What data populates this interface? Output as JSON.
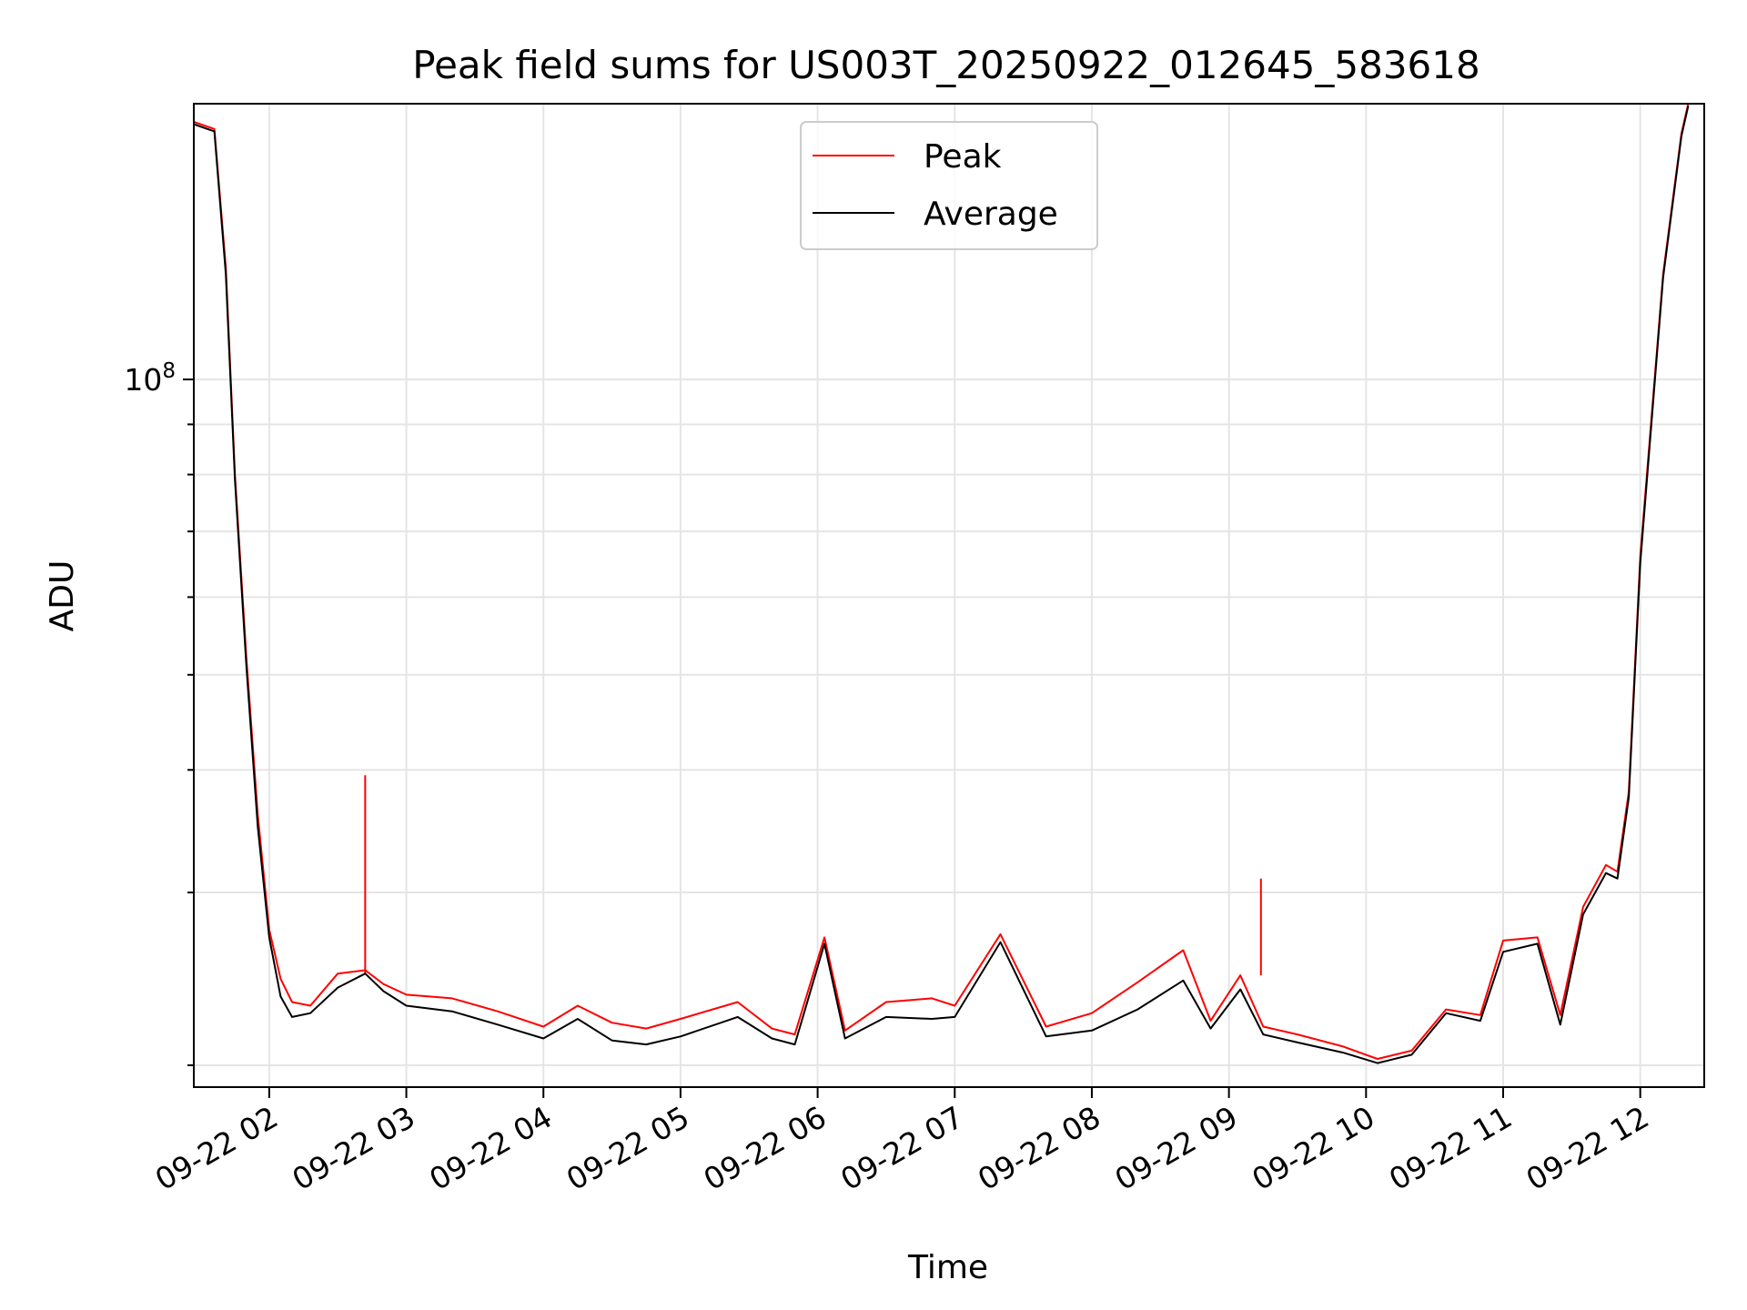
{
  "chart_data": {
    "type": "line",
    "title": "Peak field sums for US003T_20250922_012645_583618",
    "xlabel": "Time",
    "ylabel": "ADU",
    "yscale": "log",
    "ylim": [
      19000000,
      191000000
    ],
    "xlim": [
      "09-22 01:27",
      "09-22 12:28"
    ],
    "x_ticks": [
      "09-22 02",
      "09-22 03",
      "09-22 04",
      "09-22 05",
      "09-22 06",
      "09-22 07",
      "09-22 08",
      "09-22 09",
      "09-22 10",
      "09-22 11",
      "09-22 12"
    ],
    "y_ticks": [
      {
        "value": 100000000,
        "base": "10",
        "exp": "8"
      }
    ],
    "grid": true,
    "legend_position": "top-center",
    "series": [
      {
        "name": "Peak",
        "color": "#ff0000",
        "x": [
          "09-22 01:27",
          "09-22 01:36",
          "09-22 01:41",
          "09-22 01:45",
          "09-22 01:50",
          "09-22 01:55",
          "09-22 02:00",
          "09-22 02:05",
          "09-22 02:10",
          "09-22 02:18",
          "09-22 02:30",
          "09-22 02:42",
          "09-22 02:50",
          "09-22 03:00",
          "09-22 03:20",
          "09-22 03:40",
          "09-22 04:00",
          "09-22 04:15",
          "09-22 04:30",
          "09-22 04:45",
          "09-22 05:00",
          "09-22 05:25",
          "09-22 05:40",
          "09-22 05:50",
          "09-22 06:03",
          "09-22 06:12",
          "09-22 06:30",
          "09-22 06:50",
          "09-22 07:00",
          "09-22 07:20",
          "09-22 07:40",
          "09-22 08:00",
          "09-22 08:20",
          "09-22 08:40",
          "09-22 08:52",
          "09-22 09:05",
          "09-22 09:15",
          "09-22 09:30",
          "09-22 09:50",
          "09-22 10:05",
          "09-22 10:20",
          "09-22 10:35",
          "09-22 10:50",
          "09-22 11:00",
          "09-22 11:15",
          "09-22 11:25",
          "09-22 11:35",
          "09-22 11:45",
          "09-22 11:50",
          "09-22 11:55",
          "09-22 12:00",
          "09-22 12:10",
          "09-22 12:18",
          "09-22 12:21"
        ],
        "y": [
          183000000,
          180000000,
          130000000,
          80000000,
          52000000,
          36000000,
          27500000,
          24500000,
          23200000,
          23000000,
          24800000,
          25000000,
          24200000,
          23600000,
          23400000,
          22700000,
          21900000,
          23000000,
          22100000,
          21800000,
          22300000,
          23200000,
          21800000,
          21500000,
          27000000,
          21700000,
          23200000,
          23400000,
          23000000,
          27200000,
          21900000,
          22600000,
          24300000,
          26200000,
          22200000,
          24700000,
          21900000,
          21500000,
          20900000,
          20300000,
          20700000,
          22800000,
          22500000,
          26800000,
          27000000,
          22500000,
          29000000,
          32000000,
          31500000,
          38000000,
          66000000,
          128000000,
          178000000,
          191000000
        ],
        "spikes": [
          {
            "x": "09-22 02:42",
            "y": 39500000
          },
          {
            "x": "09-22 09:14",
            "y": 31000000
          }
        ]
      },
      {
        "name": "Average",
        "color": "#000000",
        "x": [
          "09-22 01:27",
          "09-22 01:36",
          "09-22 01:41",
          "09-22 01:45",
          "09-22 01:50",
          "09-22 01:55",
          "09-22 02:00",
          "09-22 02:05",
          "09-22 02:10",
          "09-22 02:18",
          "09-22 02:30",
          "09-22 02:42",
          "09-22 02:50",
          "09-22 03:00",
          "09-22 03:20",
          "09-22 03:40",
          "09-22 04:00",
          "09-22 04:15",
          "09-22 04:30",
          "09-22 04:45",
          "09-22 05:00",
          "09-22 05:25",
          "09-22 05:40",
          "09-22 05:50",
          "09-22 06:03",
          "09-22 06:12",
          "09-22 06:30",
          "09-22 06:50",
          "09-22 07:00",
          "09-22 07:20",
          "09-22 07:40",
          "09-22 08:00",
          "09-22 08:20",
          "09-22 08:40",
          "09-22 08:52",
          "09-22 09:05",
          "09-22 09:15",
          "09-22 09:30",
          "09-22 09:50",
          "09-22 10:05",
          "09-22 10:20",
          "09-22 10:35",
          "09-22 10:50",
          "09-22 11:00",
          "09-22 11:15",
          "09-22 11:25",
          "09-22 11:35",
          "09-22 11:45",
          "09-22 11:50",
          "09-22 11:55",
          "09-22 12:00",
          "09-22 12:10",
          "09-22 12:18",
          "09-22 12:21"
        ],
        "y": [
          182000000,
          179000000,
          128000000,
          79000000,
          51000000,
          35000000,
          27000000,
          23500000,
          22400000,
          22600000,
          24000000,
          24800000,
          23800000,
          23000000,
          22700000,
          22000000,
          21300000,
          22300000,
          21200000,
          21000000,
          21400000,
          22400000,
          21300000,
          21000000,
          26600000,
          21300000,
          22400000,
          22300000,
          22400000,
          26700000,
          21400000,
          21700000,
          22800000,
          24400000,
          21800000,
          23900000,
          21500000,
          21100000,
          20600000,
          20100000,
          20500000,
          22600000,
          22200000,
          26100000,
          26600000,
          22000000,
          28500000,
          31400000,
          31000000,
          37500000,
          65000000,
          127000000,
          177000000,
          190000000
        ]
      }
    ]
  }
}
